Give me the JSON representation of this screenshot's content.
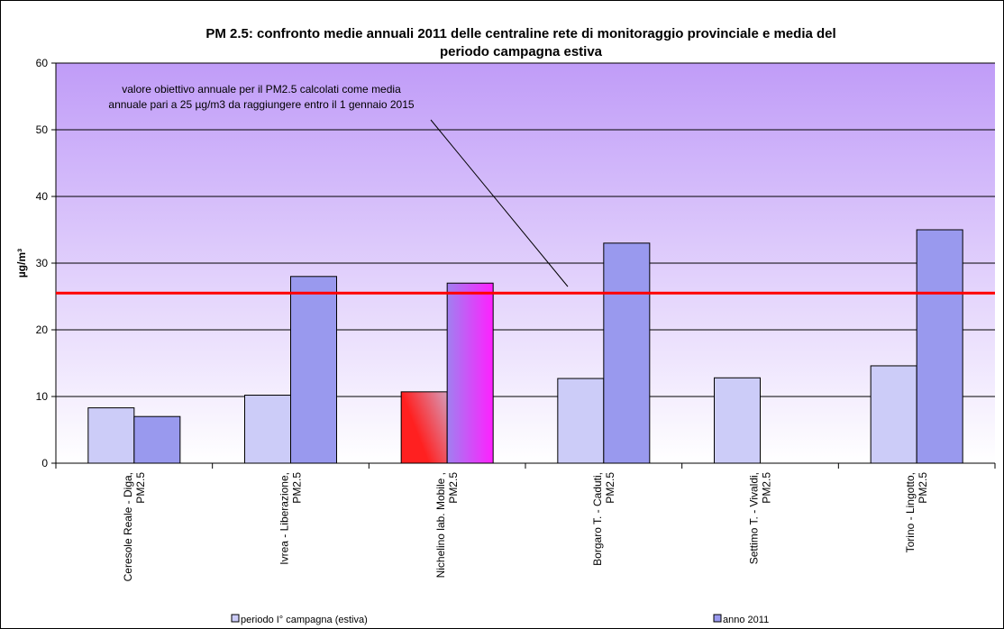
{
  "chart_data": {
    "type": "bar",
    "title": [
      "PM 2.5: confronto medie annuali 2011 delle centraline rete di monitoraggio provinciale e media del",
      "periodo campagna estiva"
    ],
    "y_label": "µg/m³",
    "annotation": [
      "valore obiettivo annuale per il PM2.5  calcolati come media",
      "annuale pari a 25 µg/m3 da raggiungere entro il 1 gennaio 2015"
    ],
    "categories": [
      [
        "Ceresole Reale - Diga,",
        "PM2.5"
      ],
      [
        "Ivrea - Liberazione,",
        "PM2.5"
      ],
      [
        "Nichelino lab. Mobile ,",
        "PM2.5"
      ],
      [
        "Borgaro T. - Caduti,",
        "PM2.5"
      ],
      [
        "Settimo T. - Vivaldi,",
        "PM2.5"
      ],
      [
        "Torino - Lingotto,",
        "PM2.5"
      ]
    ],
    "series": [
      {
        "name": "periodo I° campagna (estiva)",
        "color": "#ccccf8",
        "values": [
          8.3,
          10.2,
          10.7,
          12.7,
          12.8,
          14.6
        ],
        "gradient": {
          "index": 2,
          "from": "#ff2020",
          "to": "#c8c8f0"
        }
      },
      {
        "name": "anno 2011",
        "color": "#9999ee",
        "values": [
          7.0,
          28,
          27,
          33,
          null,
          35
        ],
        "gradient": {
          "index": 2,
          "from": "#a080f0",
          "to": "#ff20ff"
        }
      }
    ],
    "reference_line": {
      "value": 25.5,
      "color": "#ff0000"
    },
    "background_gradient": [
      "#c09cf8",
      "#ffffff"
    ],
    "ylim": [
      0,
      60
    ],
    "yticks": [
      0,
      10,
      20,
      30,
      40,
      50,
      60
    ],
    "grid": true,
    "legend": "bottom"
  }
}
